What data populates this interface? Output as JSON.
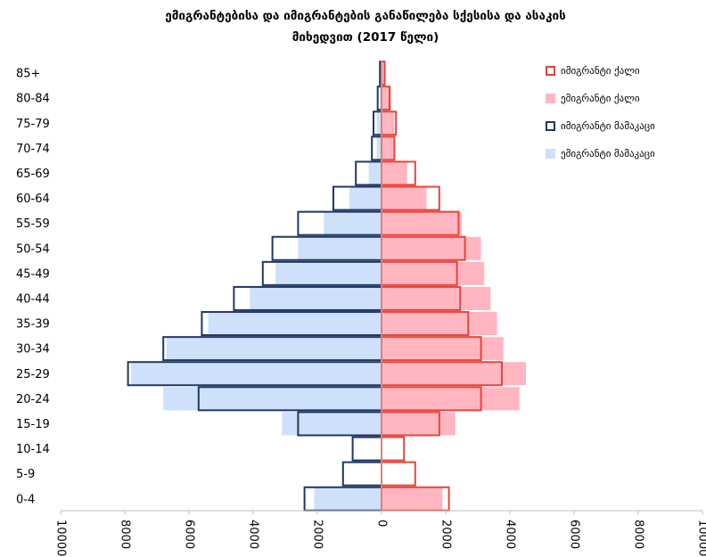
{
  "chart_data": {
    "type": "bar",
    "title": "ემიგრანტებისა და იმიგრანტების განაწილება სქესისა და ასაკის მიხედვით (2017 წელი)",
    "title_lines": [
      "ემიგრანტებისა და იმიგრანტების განაწილება სქესისა და ასაკის",
      "მიხედვით (2017 წელი)"
    ],
    "orientation": "horizontal",
    "layout": "population-pyramid",
    "categories": [
      "0-4",
      "5-9",
      "10-14",
      "15-19",
      "20-24",
      "25-29",
      "30-34",
      "35-39",
      "40-44",
      "45-49",
      "50-54",
      "55-59",
      "60-64",
      "65-69",
      "70-74",
      "75-79",
      "80-84",
      "85+"
    ],
    "series": [
      {
        "name": "ემიგრანტი მამაკაცი",
        "side": "left",
        "style": "filled",
        "color": "#cfe0fa",
        "values": [
          2100,
          0,
          0,
          3100,
          6800,
          7800,
          6700,
          5400,
          4100,
          3300,
          2600,
          1800,
          1000,
          400,
          150,
          150,
          50,
          30
        ]
      },
      {
        "name": "იმიგრანტი მამაკაცი",
        "side": "left",
        "style": "outline",
        "color": "#1f3864",
        "values": [
          2400,
          1200,
          900,
          2600,
          5700,
          7900,
          6800,
          5600,
          4600,
          3700,
          3400,
          2600,
          1500,
          800,
          300,
          250,
          120,
          50
        ]
      },
      {
        "name": "ემიგრანტი ქალი",
        "side": "right",
        "style": "filled",
        "color": "#ffb6c0",
        "values": [
          1900,
          0,
          0,
          2300,
          4300,
          4500,
          3800,
          3600,
          3400,
          3200,
          3100,
          2500,
          1400,
          800,
          400,
          400,
          300,
          100
        ]
      },
      {
        "name": "იმიგრანტი ქალი",
        "side": "right",
        "style": "outline",
        "color": "#e8453c",
        "values": [
          2100,
          1050,
          700,
          1800,
          3100,
          3750,
          3100,
          2700,
          2450,
          2350,
          2600,
          2400,
          1800,
          1050,
          400,
          450,
          250,
          100
        ]
      }
    ],
    "xlim": [
      -10000,
      10000
    ],
    "x_ticks": [
      "10000",
      "8000",
      "6000",
      "4000",
      "2000",
      "0",
      "2000",
      "4000",
      "6000",
      "8000",
      "10000"
    ],
    "legend_position": "right",
    "grid": false
  }
}
